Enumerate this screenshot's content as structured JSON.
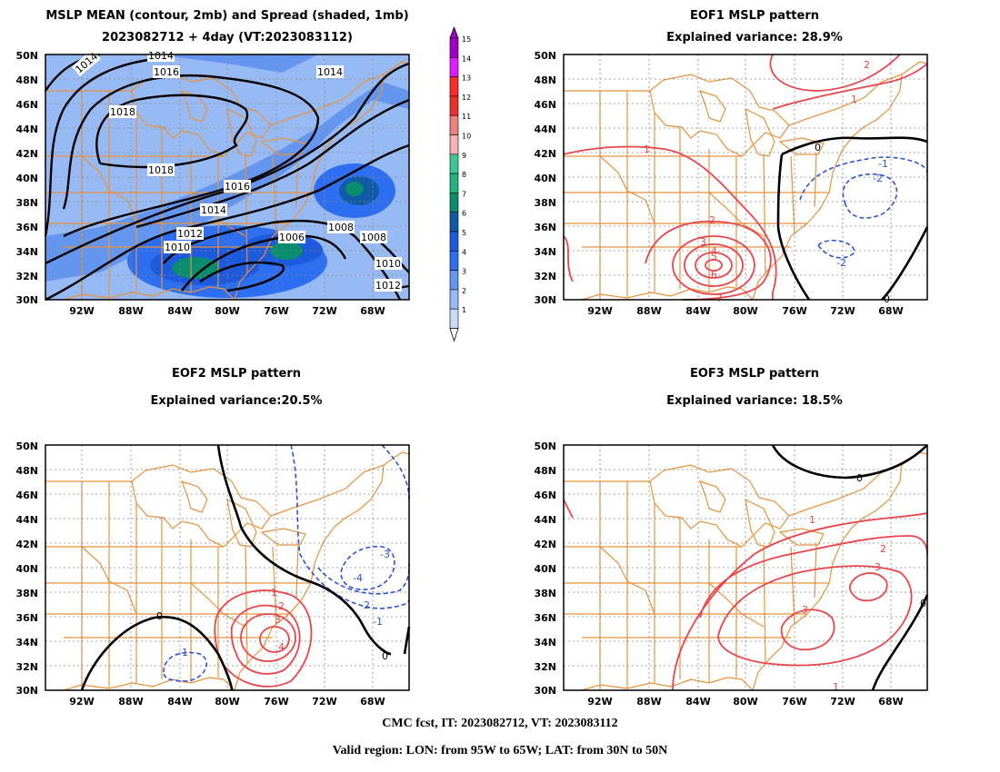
{
  "panels": {
    "mean": {
      "title_line1": "MSLP MEAN (contour, 2mb) and Spread (shaded, 1mb)",
      "title_line2": "2023082712 + 4day (VT:2023083112)",
      "contour_labels": [
        "1014",
        "1014",
        "1016",
        "1014",
        "1018",
        "1018",
        "1016",
        "1014",
        "1012",
        "1010",
        "1006",
        "1008",
        "1008",
        "1010",
        "1012",
        "1010"
      ]
    },
    "eof1": {
      "title_line1": "EOF1 MSLP pattern",
      "title_line2": "Explained variance: 28.9%",
      "contour_labels": [
        "2",
        "1",
        "1",
        "0",
        "-1",
        "-2",
        "2",
        "3",
        "4",
        "5",
        "6",
        "7",
        "-2",
        "0"
      ]
    },
    "eof2": {
      "title_line1": "EOF2 MSLP pattern",
      "title_line2": "Explained variance:20.5%",
      "contour_labels": [
        "-3",
        "-4",
        "-2",
        "-1",
        "1",
        "2",
        "3",
        "4",
        "0",
        "-1",
        "0"
      ]
    },
    "eof3": {
      "title_line1": "EOF3 MSLP pattern",
      "title_line2": "Explained variance: 18.5%",
      "contour_labels": [
        "0",
        "1",
        "2",
        "3",
        "3",
        "1",
        "0"
      ]
    }
  },
  "lat_labels": [
    "50N",
    "48N",
    "46N",
    "44N",
    "42N",
    "40N",
    "38N",
    "36N",
    "34N",
    "32N",
    "30N"
  ],
  "lon_labels": [
    "92W",
    "88W",
    "84W",
    "80W",
    "76W",
    "72W",
    "68W"
  ],
  "colorbar": {
    "labels": [
      "15",
      "14",
      "13",
      "12",
      "11",
      "10",
      "9",
      "8",
      "7",
      "6",
      "5",
      "4",
      "3",
      "2",
      "1"
    ],
    "colors": [
      "#a000c8",
      "#e01cff",
      "#ff2a2a",
      "#e8322a",
      "#f08080",
      "#f4b4b4",
      "#3cc896",
      "#20b478",
      "#0a8c6e",
      "#105aa8",
      "#1e5adc",
      "#2e6ef0",
      "#6496f0",
      "#98baf4",
      "#c8dcfa"
    ]
  },
  "footer": {
    "line1": "CMC fcst, IT: 2023082712, VT: 2023083112",
    "line2": "Valid region: LON: from 95W to 65W; LAT: from 30N to 50N"
  }
}
